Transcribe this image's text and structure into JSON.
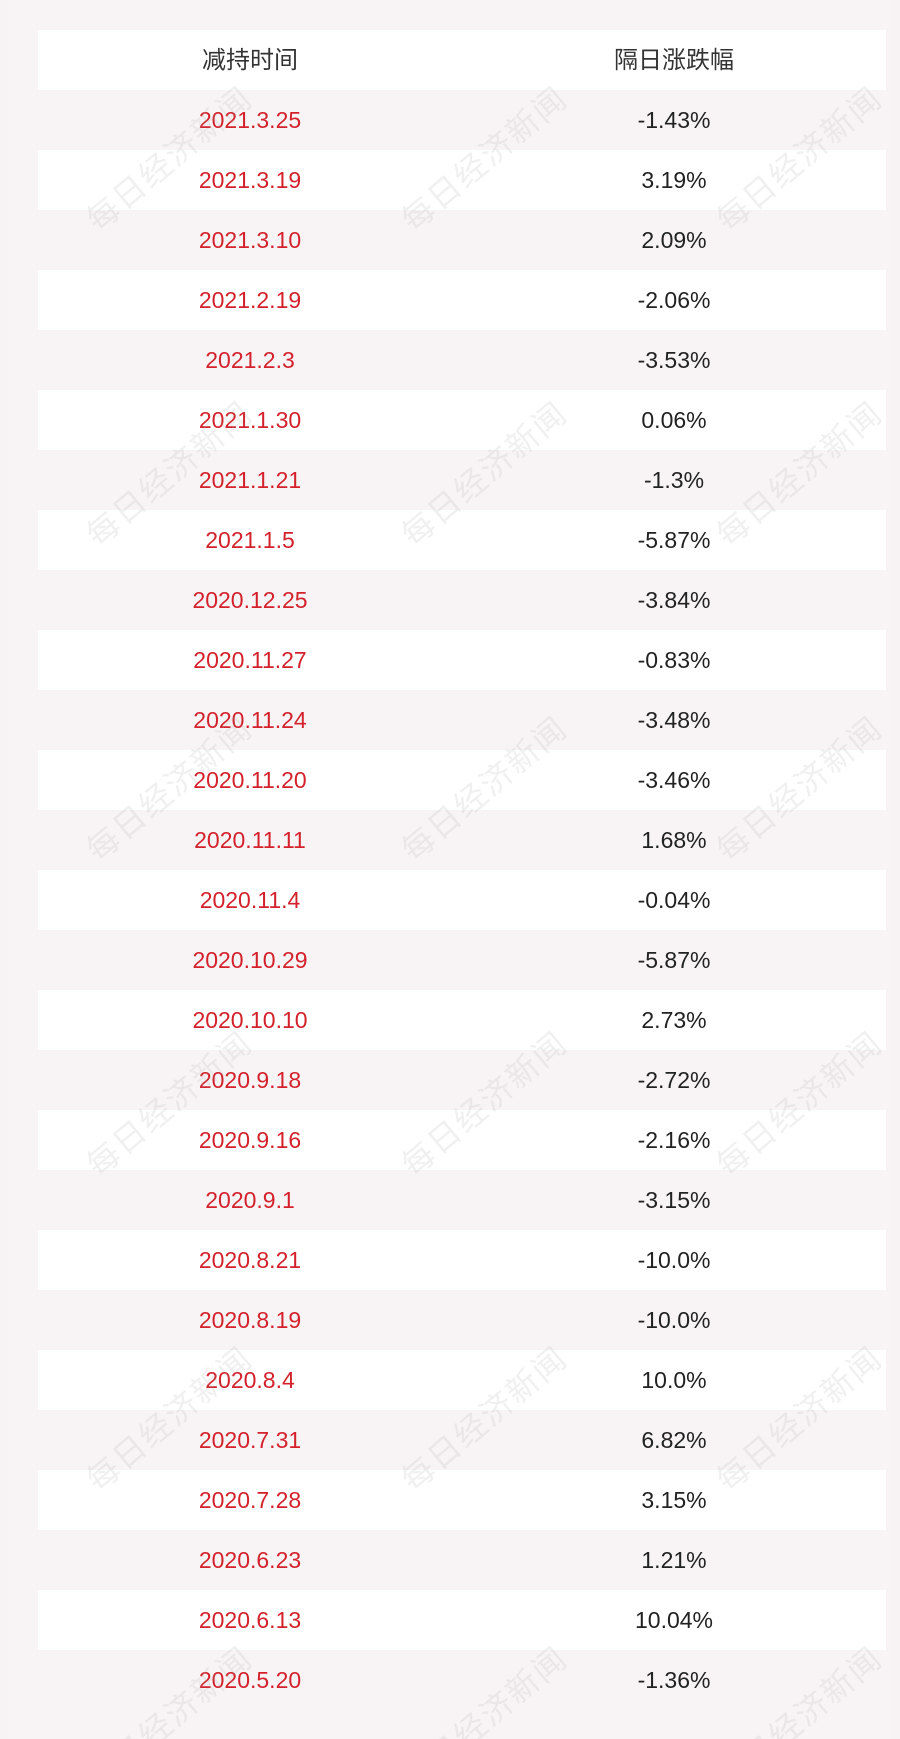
{
  "table": {
    "headers": [
      "减持时间",
      "隔日涨跌幅"
    ],
    "rows": [
      {
        "date": "2021.3.25",
        "change": "-1.43%"
      },
      {
        "date": "2021.3.19",
        "change": "3.19%"
      },
      {
        "date": "2021.3.10",
        "change": "2.09%"
      },
      {
        "date": "2021.2.19",
        "change": "-2.06%"
      },
      {
        "date": "2021.2.3",
        "change": "-3.53%"
      },
      {
        "date": "2021.1.30",
        "change": "0.06%"
      },
      {
        "date": "2021.1.21",
        "change": "-1.3%"
      },
      {
        "date": "2021.1.5",
        "change": "-5.87%"
      },
      {
        "date": "2020.12.25",
        "change": "-3.84%"
      },
      {
        "date": "2020.11.27",
        "change": "-0.83%"
      },
      {
        "date": "2020.11.24",
        "change": "-3.48%"
      },
      {
        "date": "2020.11.20",
        "change": "-3.46%"
      },
      {
        "date": "2020.11.11",
        "change": "1.68%"
      },
      {
        "date": "2020.11.4",
        "change": "-0.04%"
      },
      {
        "date": "2020.10.29",
        "change": "-5.87%"
      },
      {
        "date": "2020.10.10",
        "change": "2.73%"
      },
      {
        "date": "2020.9.18",
        "change": "-2.72%"
      },
      {
        "date": "2020.9.16",
        "change": "-2.16%"
      },
      {
        "date": "2020.9.1",
        "change": "-3.15%"
      },
      {
        "date": "2020.8.21",
        "change": "-10.0%"
      },
      {
        "date": "2020.8.19",
        "change": "-10.0%"
      },
      {
        "date": "2020.8.4",
        "change": "10.0%"
      },
      {
        "date": "2020.7.31",
        "change": "6.82%"
      },
      {
        "date": "2020.7.28",
        "change": "3.15%"
      },
      {
        "date": "2020.6.23",
        "change": "1.21%"
      },
      {
        "date": "2020.6.13",
        "change": "10.04%"
      },
      {
        "date": "2020.5.20",
        "change": "-1.36%"
      }
    ]
  },
  "watermark": {
    "text": "每日经济新闻"
  },
  "colors": {
    "date_text": "#d3222c",
    "change_text": "#222222",
    "header_text": "#333333",
    "row_white": "#ffffff",
    "row_tint": "#f8f4f5",
    "page_background": "#f7f3f4"
  }
}
